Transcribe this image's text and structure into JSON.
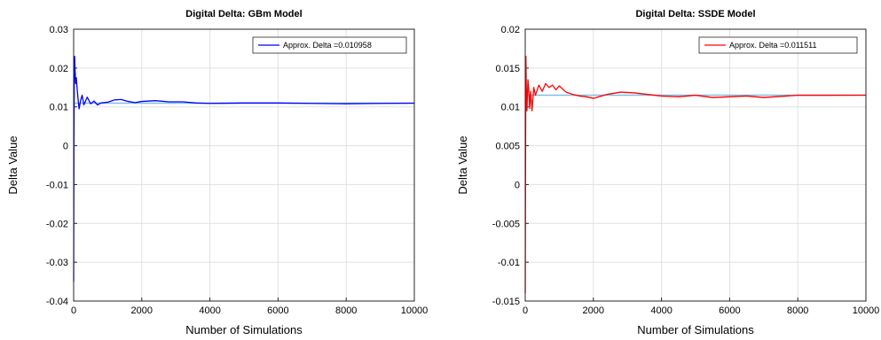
{
  "chart_data": [
    {
      "type": "line",
      "title": "Digital Delta: GBm Model",
      "xlabel": "Number of Simulations",
      "ylabel": "Delta Value",
      "xlim": [
        0,
        10000
      ],
      "ylim": [
        -0.04,
        0.03
      ],
      "xticks": [
        "0",
        "2000",
        "4000",
        "6000",
        "8000",
        "10000"
      ],
      "yticks": [
        "-0.04",
        "-0.03",
        "-0.02",
        "-0.01",
        "0",
        "0.01",
        "0.02",
        "0.03"
      ],
      "grid": true,
      "legend_position": "top-right",
      "reference_line": 0.010958,
      "reference_color": "#7fbfe6",
      "series": [
        {
          "name": "Approx. Delta =0.010958",
          "color": "#0000ff",
          "x": [
            1,
            10,
            20,
            30,
            40,
            60,
            80,
            100,
            130,
            160,
            200,
            250,
            300,
            400,
            500,
            600,
            700,
            800,
            1000,
            1200,
            1400,
            1600,
            1800,
            2000,
            2400,
            2800,
            3200,
            3600,
            4000,
            5000,
            6000,
            7000,
            8000,
            9000,
            10000
          ],
          "y": [
            -0.035,
            0.0,
            0.018,
            0.023,
            0.02,
            0.016,
            0.0175,
            0.015,
            0.012,
            0.0095,
            0.0115,
            0.013,
            0.0105,
            0.0125,
            0.0108,
            0.0115,
            0.0105,
            0.011,
            0.0112,
            0.0118,
            0.0119,
            0.0114,
            0.0111,
            0.0114,
            0.0116,
            0.0113,
            0.0113,
            0.011,
            0.0109,
            0.011,
            0.011,
            0.0109,
            0.0108,
            0.0109,
            0.01096
          ]
        }
      ]
    },
    {
      "type": "line",
      "title": "Digital Delta: SSDE Model",
      "xlabel": "Number of Simulations",
      "ylabel": "Delta Value",
      "xlim": [
        0,
        10000
      ],
      "ylim": [
        -0.015,
        0.02
      ],
      "xticks": [
        "0",
        "2000",
        "4000",
        "6000",
        "8000",
        "10000"
      ],
      "yticks": [
        "-0.015",
        "-0.01",
        "-0.005",
        "0",
        "0.005",
        "0.01",
        "0.015",
        "0.02"
      ],
      "grid": true,
      "legend_position": "top-right",
      "reference_line": 0.011511,
      "reference_color": "#7fbfe6",
      "series": [
        {
          "name": "Approx. Delta =0.011511",
          "color": "#ff0000",
          "x": [
            1,
            10,
            20,
            30,
            50,
            80,
            100,
            130,
            160,
            200,
            250,
            300,
            400,
            500,
            600,
            700,
            800,
            900,
            1000,
            1200,
            1400,
            1600,
            1800,
            2000,
            2400,
            2800,
            3200,
            3600,
            4000,
            4500,
            5000,
            5500,
            6000,
            6500,
            7000,
            8000,
            9000,
            10000
          ],
          "y": [
            -0.014,
            0.004,
            0.0165,
            0.013,
            0.0095,
            0.0135,
            0.0125,
            0.0098,
            0.012,
            0.0095,
            0.0125,
            0.0115,
            0.0128,
            0.012,
            0.013,
            0.0125,
            0.0128,
            0.0122,
            0.0127,
            0.0119,
            0.0116,
            0.0114,
            0.0113,
            0.0111,
            0.0116,
            0.0119,
            0.0118,
            0.0116,
            0.0114,
            0.0113,
            0.0115,
            0.0112,
            0.0113,
            0.0114,
            0.0112,
            0.0115,
            0.0115,
            0.01151
          ]
        }
      ]
    }
  ]
}
